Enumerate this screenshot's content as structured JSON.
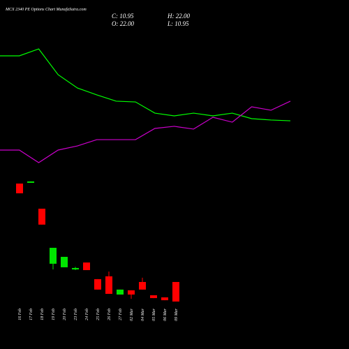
{
  "chart_data": [
    {
      "type": "candlestick",
      "title": "MCX 2340 PE Options Chart MunafaSutra.com",
      "ohlc_labels": [
        "C: 10.95",
        "H: 22.00",
        "O: 22.00",
        "L: 10.95"
      ],
      "categories": [
        "16 Feb",
        "17 Feb",
        "18 Feb",
        "19 Feb",
        "20 Feb",
        "23 Feb",
        "24 Feb",
        "25 Feb",
        "26 Feb",
        "27 Feb",
        "02 Mar",
        "04 Mar",
        "05 Mar",
        "06 Mar",
        "09 Mar"
      ],
      "open": [
        77.6,
        78.5,
        63.4,
        32.3,
        30.3,
        29.1,
        33.0,
        23.6,
        25.2,
        14.9,
        17.3,
        22.0,
        14.5,
        13.3,
        22.0
      ],
      "high": [
        77.6,
        78.8,
        63.4,
        41.3,
        36.2,
        30.5,
        33.0,
        23.6,
        27.9,
        17.7,
        17.3,
        24.4,
        14.5,
        13.3,
        22.0
      ],
      "low": [
        72.1,
        78.5,
        54.4,
        29.1,
        30.3,
        28.7,
        28.7,
        17.7,
        15.3,
        14.9,
        12.5,
        17.7,
        12.9,
        11.7,
        10.95
      ],
      "close": [
        72.1,
        78.8,
        54.4,
        41.3,
        36.2,
        29.9,
        28.7,
        17.7,
        15.3,
        17.7,
        14.9,
        17.7,
        12.9,
        11.7,
        10.95
      ],
      "up_color": "#00e600",
      "down_color": "#ff0000",
      "ylim": [
        5,
        85
      ]
    },
    {
      "type": "line",
      "x": [
        0,
        1,
        2,
        3,
        4,
        5,
        6,
        7,
        8,
        9,
        10,
        11,
        12,
        13,
        14,
        15
      ],
      "series": [
        {
          "color": "#00ff00",
          "values": [
            88.9,
            88.9,
            94.4,
            73.9,
            63.3,
            57.8,
            52.8,
            52.2,
            43.3,
            41.1,
            43.3,
            41.1,
            43.3,
            38.9,
            37.8,
            37.2
          ]
        },
        {
          "color": "#cc00cc",
          "values": [
            13.9,
            13.9,
            3.9,
            13.9,
            17.2,
            22.2,
            22.2,
            22.2,
            31.1,
            32.8,
            30.6,
            40.0,
            36.1,
            48.3,
            45.6,
            52.8
          ]
        }
      ],
      "xlim": [
        0,
        15
      ],
      "ylim": [
        0,
        100
      ]
    }
  ]
}
